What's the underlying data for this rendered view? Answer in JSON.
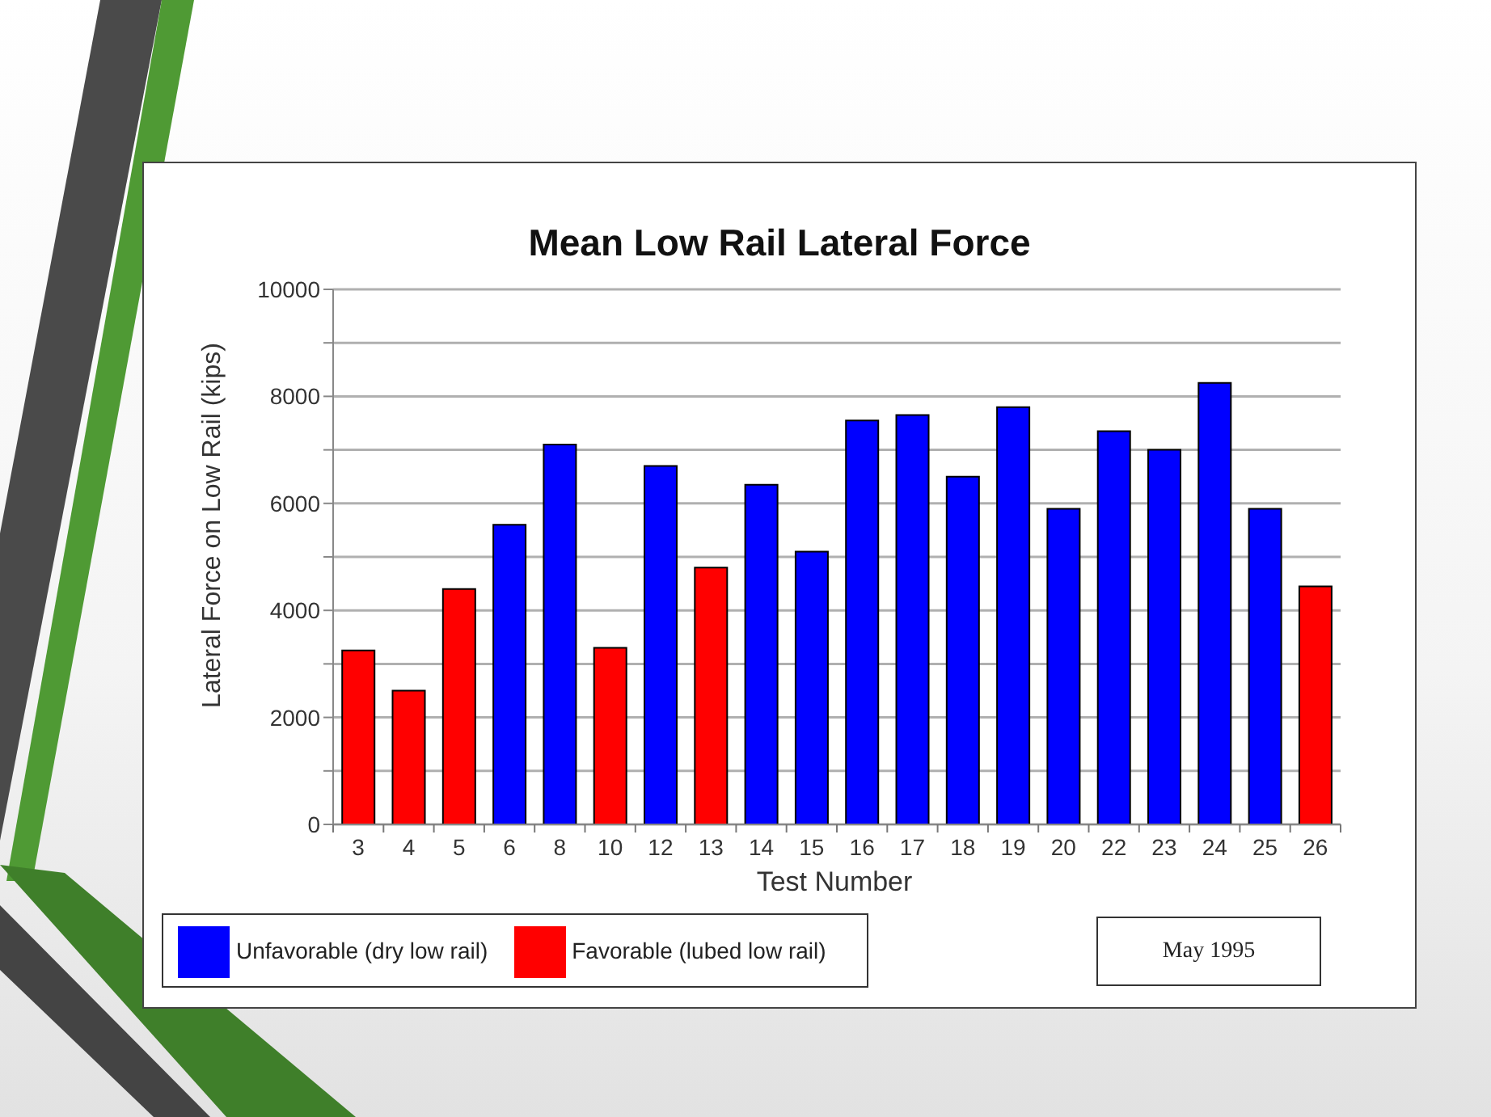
{
  "chart_data": {
    "type": "bar",
    "title": "Mean Low Rail Lateral Force",
    "xlabel": "Test Number",
    "ylabel": "Lateral Force on Low Rail (kips)",
    "categories": [
      "3",
      "4",
      "5",
      "6",
      "8",
      "10",
      "12",
      "13",
      "14",
      "15",
      "16",
      "17",
      "18",
      "19",
      "20",
      "22",
      "23",
      "24",
      "25",
      "26"
    ],
    "series": [
      {
        "name": "Unfavorable (dry low rail)",
        "color": "#0000ff",
        "values": [
          null,
          null,
          null,
          5600,
          7100,
          null,
          6700,
          null,
          6350,
          5100,
          7550,
          7650,
          6500,
          7800,
          5900,
          7350,
          7000,
          8250,
          5900,
          null
        ]
      },
      {
        "name": "Favorable (lubed low rail)",
        "color": "#ff0000",
        "values": [
          3250,
          2500,
          4400,
          null,
          null,
          3300,
          null,
          4800,
          null,
          null,
          null,
          null,
          null,
          null,
          null,
          null,
          null,
          null,
          null,
          4450
        ]
      }
    ],
    "stacked": true,
    "ylim": [
      0,
      10000
    ],
    "yticks": [
      0,
      {
        "value": 1000,
        "label": null
      },
      2000,
      {
        "value": 3000,
        "label": null
      },
      4000,
      {
        "value": 5000,
        "label": null
      },
      6000,
      {
        "value": 7000,
        "label": null
      },
      8000,
      {
        "value": 9000,
        "label": null
      },
      10000
    ],
    "grid": "y",
    "legend": "bottom",
    "annotations": [
      "May 1995"
    ]
  }
}
